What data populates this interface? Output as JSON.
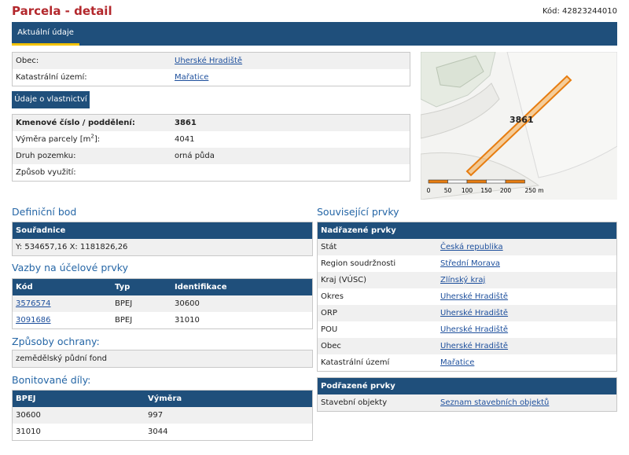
{
  "header": {
    "title": "Parcela - detail",
    "code": "Kód: 42823244010"
  },
  "tab": "Aktuální údaje",
  "location": {
    "rows": [
      [
        "Obec:",
        "Uherské Hradiště"
      ],
      [
        "Katastrální území:",
        "Mařatice"
      ]
    ]
  },
  "ownership_button": "Údaje o vlastnictví",
  "parcel": {
    "rows": [
      {
        "label": [
          "Kmenové číslo / poddělení:"
        ],
        "value": "3861"
      },
      {
        "label": [
          "Výměra parcely [m",
          "2",
          "]:"
        ],
        "value": "4041"
      },
      {
        "label": [
          "Druh pozemku:"
        ],
        "value": "orná půda"
      },
      {
        "label": [
          "Způsob využití:"
        ],
        "value": null
      }
    ]
  },
  "map": {
    "parcel_label": "3861",
    "scale": [
      "0",
      "50",
      "100",
      "150",
      "200",
      "250 m"
    ]
  },
  "definition_point": {
    "heading": "Definiční bod",
    "header": [
      "Souřadnice"
    ],
    "rows": [
      [
        "Y: 534657,16 X: 1181826,26"
      ]
    ]
  },
  "purpose_links": {
    "heading": "Vazby na účelové prvky",
    "header": [
      "Kód",
      "Typ",
      "Identifikace"
    ],
    "rows": [
      [
        "3576574",
        "BPEJ",
        "30600"
      ],
      [
        "3091686",
        "BPEJ",
        "31010"
      ]
    ]
  },
  "protection": {
    "heading": "Způsoby ochrany:",
    "rows": [
      [
        "zemědělský půdní fond"
      ]
    ]
  },
  "rated_parts": {
    "heading": "Bonitované díly:",
    "header": [
      "BPEJ",
      "Výměra"
    ],
    "rows": [
      [
        "30600",
        "997"
      ],
      [
        "31010",
        "3044"
      ]
    ]
  },
  "related": {
    "heading": "Související prvky",
    "superior": {
      "header": [
        "Nadřazené prvky"
      ],
      "rows": [
        [
          "Stát",
          "Česká republika"
        ],
        [
          "Region soudržnosti",
          "Střední Morava"
        ],
        [
          "Kraj (VÚSC)",
          "Zlínský kraj"
        ],
        [
          "Okres",
          "Uherské Hradiště"
        ],
        [
          "ORP",
          "Uherské Hradiště"
        ],
        [
          "POU",
          "Uherské Hradiště"
        ],
        [
          "Obec",
          "Uherské Hradiště"
        ],
        [
          "Katastrální území",
          "Mařatice"
        ]
      ]
    },
    "subordinate": {
      "header": [
        "Podřazené prvky"
      ],
      "rows": [
        [
          "Stavební objekty",
          "Seznam stavebních objektů"
        ]
      ]
    }
  }
}
